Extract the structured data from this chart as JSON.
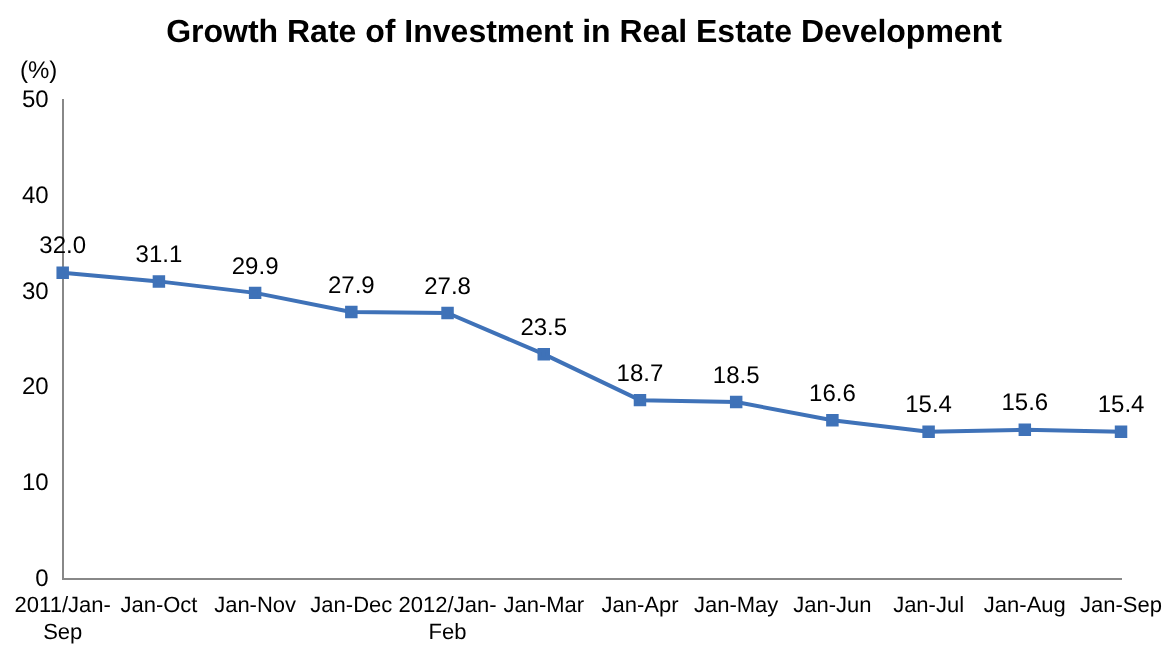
{
  "chart_data": {
    "type": "line",
    "title": "Growth Rate of Investment in Real Estate Development",
    "ylabel": "(%)",
    "categories": [
      "2011/Jan-Sep",
      "Jan-Oct",
      "Jan-Nov",
      "Jan-Dec",
      "2012/Jan-Feb",
      "Jan-Mar",
      "Jan-Apr",
      "Jan-May",
      "Jan-Jun",
      "Jan-Jul",
      "Jan-Aug",
      "Jan-Sep"
    ],
    "series": [
      {
        "color": "#3f72b8",
        "values": [
          32.0,
          31.1,
          29.9,
          27.9,
          27.8,
          23.5,
          18.7,
          18.5,
          16.6,
          15.4,
          15.6,
          15.4
        ]
      }
    ],
    "value_labels": [
      "32.0",
      "31.1",
      "29.9",
      "27.9",
      "27.8",
      "23.5",
      "18.7",
      "18.5",
      "16.6",
      "15.4",
      "15.6",
      "15.4"
    ],
    "ylim": [
      0,
      50
    ],
    "yticks": [
      0,
      10,
      20,
      30,
      40,
      50
    ],
    "grid": false,
    "legend": false,
    "marker": "square",
    "line_style": "solid"
  }
}
